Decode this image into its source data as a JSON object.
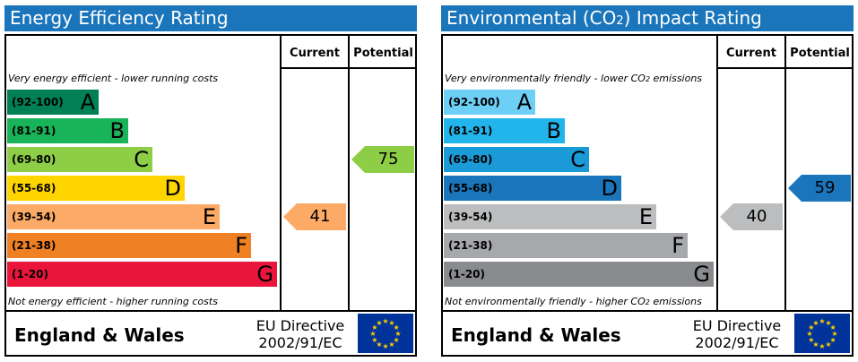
{
  "energy": {
    "title": "Energy Efficiency Rating",
    "current_header": "Current",
    "potential_header": "Potential",
    "top_note": "Very energy efficient - lower running costs",
    "bottom_note": "Not energy efficient - higher running costs",
    "bands": [
      {
        "range": "(92-100)",
        "letter": "A",
        "color": "#008054",
        "range_color": "#000000",
        "letter_color": "#000000"
      },
      {
        "range": "(81-91)",
        "letter": "B",
        "color": "#19b459",
        "range_color": "#000000",
        "letter_color": "#000000"
      },
      {
        "range": "(69-80)",
        "letter": "C",
        "color": "#8dce46",
        "range_color": "#000000",
        "letter_color": "#000000"
      },
      {
        "range": "(55-68)",
        "letter": "D",
        "color": "#ffd500",
        "range_color": "#000000",
        "letter_color": "#000000"
      },
      {
        "range": "(39-54)",
        "letter": "E",
        "color": "#fcaa65",
        "range_color": "#000000",
        "letter_color": "#000000"
      },
      {
        "range": "(21-38)",
        "letter": "F",
        "color": "#ef8023",
        "range_color": "#000000",
        "letter_color": "#000000"
      },
      {
        "range": "(1-20)",
        "letter": "G",
        "color": "#e9153b",
        "range_color": "#000000",
        "letter_color": "#000000"
      }
    ],
    "current": {
      "value": "41",
      "color": "#fcaa65"
    },
    "potential": {
      "value": "75",
      "color": "#8dce46"
    },
    "footer_region": "England & Wales",
    "footer_directive_line1": "EU Directive",
    "footer_directive_line2": "2002/91/EC"
  },
  "environment": {
    "title_prefix": "Environmental (CO",
    "title_sub": "2",
    "title_suffix": ") Impact Rating",
    "current_header": "Current",
    "potential_header": "Potential",
    "top_note_prefix": "Very environmentally friendly - lower CO",
    "top_note_sub": "2",
    "top_note_suffix": " emissions",
    "bottom_note_prefix": "Not environmentally friendly - higher CO",
    "bottom_note_sub": "2",
    "bottom_note_suffix": " emissions",
    "bands": [
      {
        "range": "(92-100)",
        "letter": "A",
        "color": "#6ecff6"
      },
      {
        "range": "(81-91)",
        "letter": "B",
        "color": "#22b5eb"
      },
      {
        "range": "(69-80)",
        "letter": "C",
        "color": "#1a9ad7"
      },
      {
        "range": "(55-68)",
        "letter": "D",
        "color": "#1a75bb"
      },
      {
        "range": "(39-54)",
        "letter": "E",
        "color": "#bbbdbf"
      },
      {
        "range": "(21-38)",
        "letter": "F",
        "color": "#a6a8ab"
      },
      {
        "range": "(1-20)",
        "letter": "G",
        "color": "#898b8e"
      }
    ],
    "current": {
      "value": "40",
      "color": "#bbbdbf"
    },
    "potential": {
      "value": "59",
      "color": "#1a75bb"
    },
    "footer_region": "England & Wales",
    "footer_directive_line1": "EU Directive",
    "footer_directive_line2": "2002/91/EC"
  },
  "colors": {
    "title_bar": "#1a75bb",
    "eu_flag": "#003399",
    "eu_stars": "#ffcc00"
  }
}
